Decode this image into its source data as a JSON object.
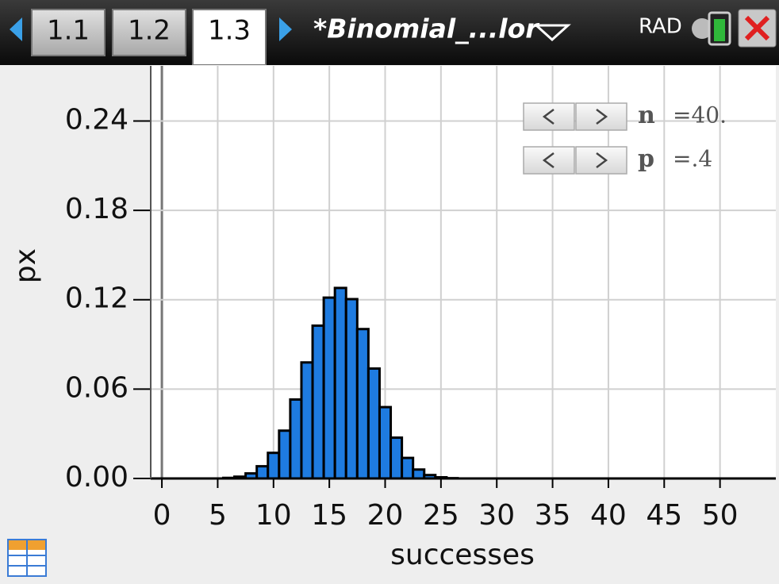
{
  "tabs": [
    "1.1",
    "1.2",
    "1.3"
  ],
  "document_title": "*Binomial_...lor",
  "mode": "RAD",
  "sliders": [
    {
      "name": "n",
      "value": "=40."
    },
    {
      "name": "p",
      "value": "=.4"
    }
  ],
  "chart_data": {
    "type": "histogram",
    "x_label": "successes",
    "y_label": "px",
    "bins": [
      5.5,
      6.5,
      7.5,
      8.5,
      9.5,
      10.5,
      11.5,
      12.5,
      13.5,
      14.5,
      15.5,
      16.5,
      17.5,
      18.5,
      19.5,
      20.5,
      21.5,
      22.5,
      23.5,
      24.5,
      25.5,
      26.5
    ],
    "values": [
      0.0004,
      0.0012,
      0.0034,
      0.0082,
      0.0172,
      0.0321,
      0.053,
      0.0779,
      0.1026,
      0.1214,
      0.1279,
      0.1204,
      0.1003,
      0.0738,
      0.0479,
      0.0274,
      0.0138,
      0.006,
      0.0023,
      0.0008,
      0.0002
    ],
    "color": "#1e7be0",
    "xlim": [
      -1,
      55
    ],
    "ylim": [
      0,
      0.277
    ],
    "xticks": [
      0,
      5,
      10,
      15,
      20,
      25,
      30,
      35,
      40,
      45,
      50
    ],
    "yticks": [
      {
        "value": 0,
        "label": "0.00"
      },
      {
        "value": 0.06,
        "label": "0.06"
      },
      {
        "value": 0.12,
        "label": "0.12"
      },
      {
        "value": 0.18,
        "label": "0.18"
      },
      {
        "value": 0.24,
        "label": "0.24"
      }
    ],
    "grid": true
  }
}
